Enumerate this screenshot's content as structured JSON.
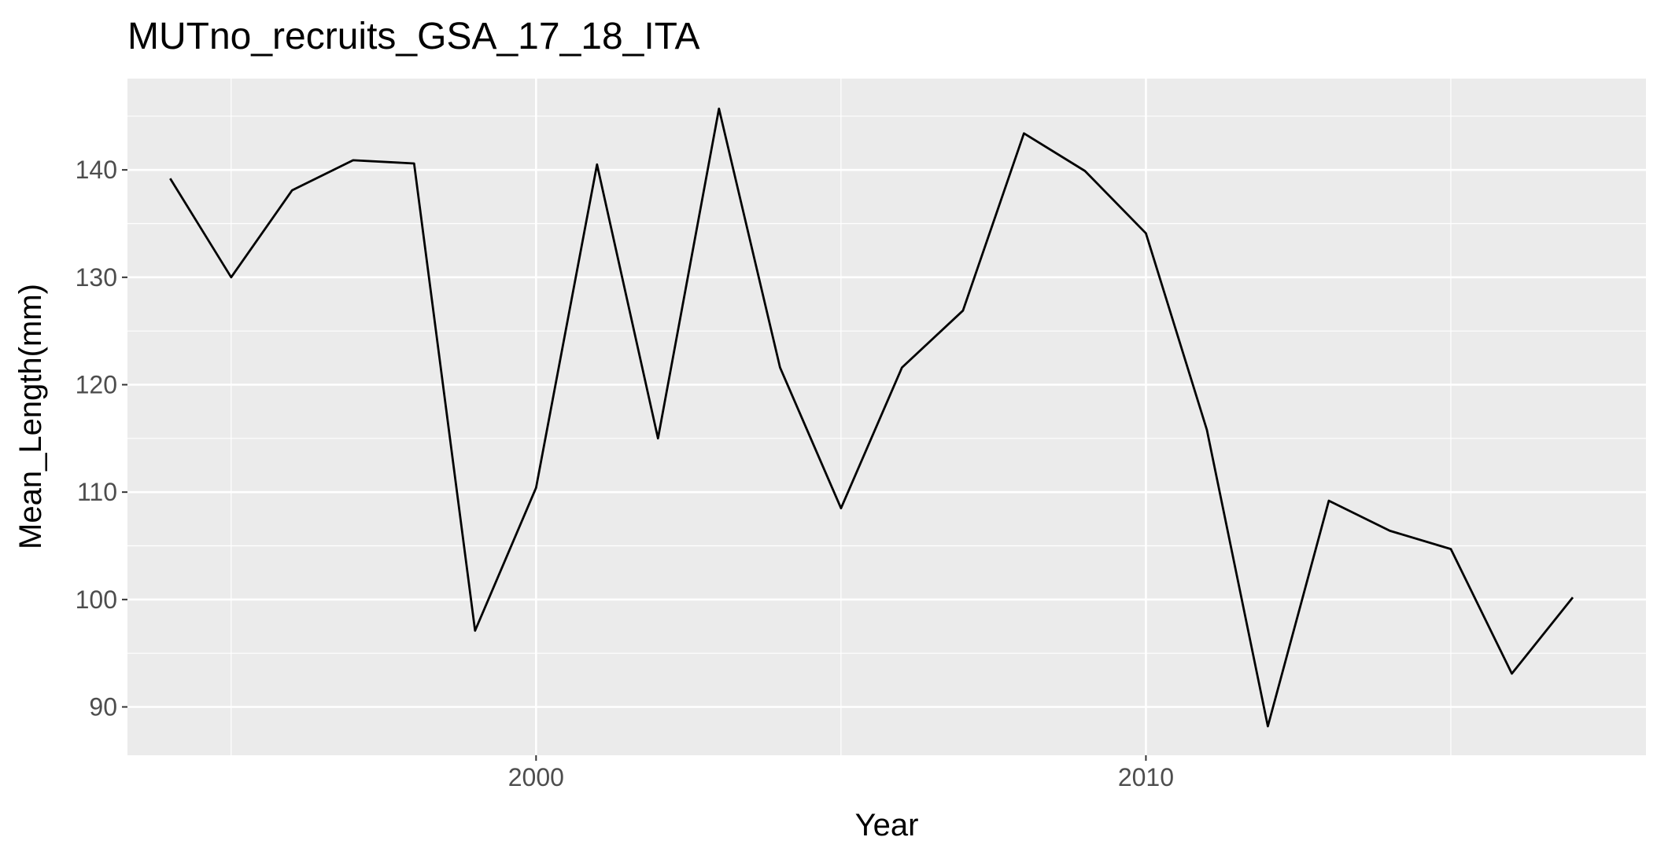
{
  "chart_data": {
    "type": "line",
    "title": "MUTno_recruits_GSA_17_18_ITA",
    "xlabel": "Year",
    "ylabel": "Mean_Length(mm)",
    "xlim": [
      1993.3,
      2018.2
    ],
    "ylim": [
      85.5,
      148.5
    ],
    "x_ticks": [
      2000,
      2010
    ],
    "x_tick_labels": [
      "2000",
      "2010"
    ],
    "y_ticks": [
      90,
      100,
      110,
      120,
      130,
      140
    ],
    "y_tick_labels": [
      "90",
      "100",
      "110",
      "120",
      "130",
      "140"
    ],
    "grid": true,
    "colors": {
      "panel": "#ebebeb",
      "grid": "#ffffff",
      "line": "#000000",
      "tick_text": "#4d4d4d"
    },
    "x": [
      1994,
      1995,
      1996,
      1997,
      1998,
      1999,
      2000,
      2001,
      2002,
      2003,
      2004,
      2005,
      2006,
      2007,
      2008,
      2009,
      2010,
      2011,
      2012,
      2013,
      2014,
      2015,
      2016,
      2017
    ],
    "y": [
      139.2,
      130.0,
      138.1,
      140.9,
      140.6,
      97.1,
      110.4,
      140.5,
      115.0,
      145.7,
      121.6,
      108.5,
      121.6,
      126.9,
      143.4,
      139.9,
      134.1,
      115.8,
      88.2,
      109.2,
      106.4,
      104.7,
      93.1,
      100.2
    ]
  }
}
